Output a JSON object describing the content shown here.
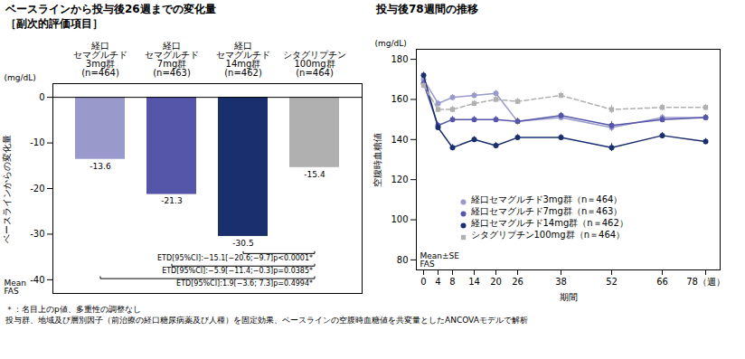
{
  "chart_data": [
    {
      "type": "bar",
      "title": "ベースラインから投与後26週までの変化量",
      "subtitle": "［副次的評価項目］",
      "categories": [
        "経口\nセマグルチド\n3mg群\n(n=464)",
        "経口\nセマグルチド\n7mg群\n(n=463)",
        "経口\nセマグルチド\n14mg群\n(n=462)",
        "シタグリプチン\n100mg群\n(n=464)"
      ],
      "values": [
        -13.6,
        -21.3,
        -30.5,
        -15.4
      ],
      "colors": [
        "#9999cc",
        "#5555aa",
        "#1a2f6e",
        "#b0b0b0"
      ],
      "data_labels": true,
      "ylabel": "ベースラインからの変化量",
      "y_unit": "(mg/dL)",
      "note": "Mean\nFAS",
      "ylim": [
        -43,
        3
      ],
      "yticks": [
        0,
        -10,
        -20,
        -30,
        -40
      ],
      "grid": false,
      "annotations": [
        {
          "from": "経口\nセマグルチド\n14mg群\n(n=462)",
          "to": "シタグリプチン\n100mg群\n(n=464)",
          "text": "ETD[95%CI]:−15.1[−20.6;−9.7]p<0.0001*"
        },
        {
          "from": "経口\nセマグルチド\n7mg群\n(n=463)",
          "to": "シタグリプチン\n100mg群\n(n=464)",
          "text": "ETD[95%CI]:−5.9[−11.4;−0.3]p=0.0385*"
        },
        {
          "from": "経口\nセマグルチド\n3mg群\n(n=464)",
          "to": "シタグリプチン\n100mg群\n(n=464)",
          "text": "ETD[95%CI]:1.9[−3.6; 7.3]p=0.4994*"
        }
      ],
      "footnotes": [
        "＊：名目上のp値、多重性の調整なし",
        "投与群、地域及び層別因子（前治療の経口糖尿病薬及び人種）を固定効果、ベースラインの空腹時血糖値を共変量としたANCOVAモデルで解析"
      ]
    },
    {
      "type": "line",
      "title": "投与後78週間の推移",
      "x": [
        0,
        4,
        8,
        14,
        20,
        26,
        38,
        52,
        66,
        78
      ],
      "xlim": [
        -2,
        82
      ],
      "xticks": [
        0,
        4,
        8,
        14,
        20,
        26,
        38,
        52,
        66,
        {
          "value": 78,
          "label": "78（週）"
        }
      ],
      "xlabel": "期間",
      "ylabel": "空腹時血糖値",
      "y_unit": "(mg/dL)",
      "note": "Mean±SE\nFAS",
      "ylim": [
        75,
        185
      ],
      "yticks": [
        80,
        100,
        120,
        140,
        160,
        180
      ],
      "grid": false,
      "legend": "lower left",
      "series": [
        {
          "name": "経口セマグルチド3mg群（n＝464）",
          "color": "#9999cc",
          "marker": "circle",
          "line_style": "solid",
          "values": [
            170,
            158,
            161,
            162,
            163,
            149,
            151,
            146,
            151,
            151
          ],
          "errors": [
            1.5,
            1.5,
            1.5,
            1.5,
            1.5,
            1.5,
            1.5,
            2.0,
            1.5,
            1.5
          ]
        },
        {
          "name": "経口セマグルチド7mg群（n＝463）",
          "color": "#5555aa",
          "marker": "circle",
          "line_style": "solid",
          "values": [
            168,
            147,
            150,
            150,
            150,
            149,
            152,
            147,
            150,
            151
          ],
          "errors": [
            1.5,
            1.5,
            1.5,
            1.5,
            1.5,
            1.5,
            1.5,
            2.0,
            1.5,
            1.5
          ]
        },
        {
          "name": "経口セマグルチド14mg群（n＝462）",
          "color": "#1a2f6e",
          "marker": "circle",
          "line_style": "solid",
          "values": [
            172,
            146,
            136,
            140,
            137,
            141,
            141,
            136,
            142,
            139
          ],
          "errors": [
            1.5,
            1.5,
            1.5,
            1.5,
            1.5,
            1.5,
            1.5,
            2.0,
            1.5,
            1.5
          ]
        },
        {
          "name": "シタグリプチン100mg群（n＝464）",
          "color": "#b0b0b0",
          "marker": "square",
          "line_style": "dashed",
          "values": [
            167,
            155,
            155,
            158,
            160,
            159,
            162,
            155,
            156,
            156
          ],
          "errors": [
            1.5,
            1.5,
            1.5,
            1.5,
            1.5,
            1.5,
            1.5,
            2.0,
            1.5,
            1.5
          ]
        }
      ]
    }
  ]
}
